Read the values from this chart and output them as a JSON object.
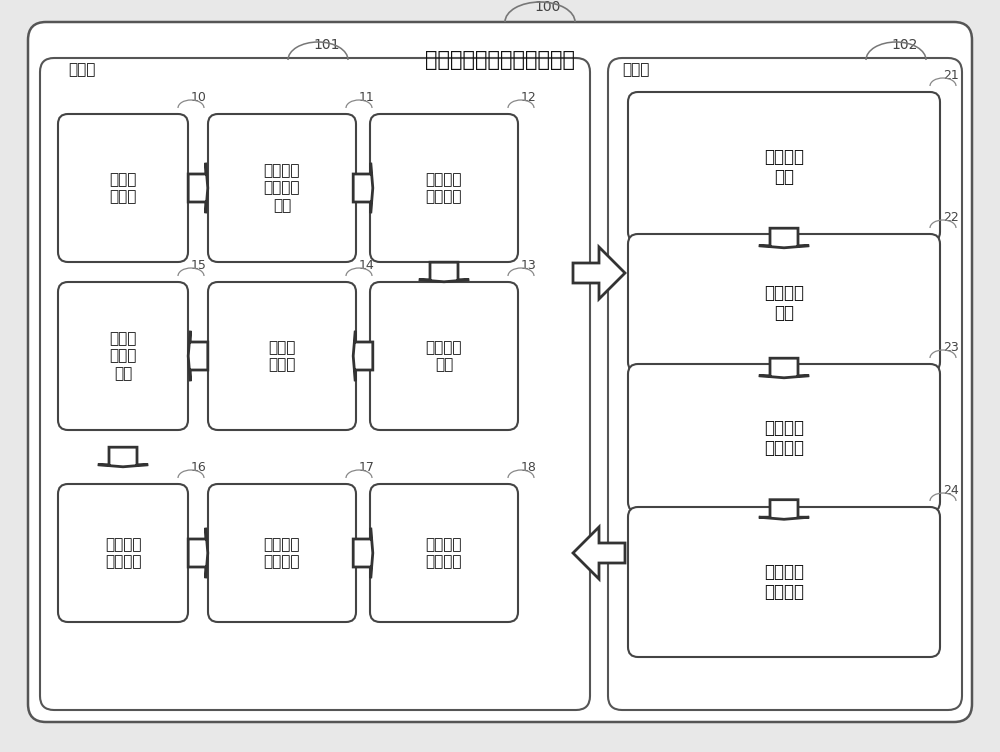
{
  "title_main": "用于辅助教学过程的教学系",
  "label_100": "100",
  "label_101": "101",
  "label_102": "102",
  "label_teacher": "教师端",
  "label_student": "学生端",
  "left_boxes": {
    "10": {
      "text": "课堂点\n评模块",
      "col": 0,
      "row": 0
    },
    "11": {
      "text": "引用电子\n备课教案\n模块",
      "col": 1,
      "row": 0
    },
    "12": {
      "text": "引用教材\n资源模块",
      "col": 2,
      "row": 0
    },
    "13": {
      "text": "小组互动\n模块",
      "col": 2,
      "row": 1
    },
    "14": {
      "text": "电子白\n板模块",
      "col": 1,
      "row": 1
    },
    "15": {
      "text": "引用随\n堂检测\n模块",
      "col": 0,
      "row": 1
    },
    "16": {
      "text": "引用课后\n作业模块",
      "col": 0,
      "row": 2
    },
    "17": {
      "text": "引用视频\n录制模块",
      "col": 1,
      "row": 2
    },
    "18": {
      "text": "引用微课\n助手模块",
      "col": 2,
      "row": 2
    }
  },
  "right_boxes": {
    "21": {
      "text": "课堂在线\n任务",
      "row": 0
    },
    "22": {
      "text": "课堂在线\n作业",
      "row": 1
    },
    "23": {
      "text": "引用视频\n录制模块",
      "row": 2
    },
    "24": {
      "text": "引用微课\n助手模块",
      "row": 3
    }
  },
  "bg_color": "#e8e8e8",
  "outer_bg": "#ffffff",
  "box_fc": "#ffffff",
  "box_ec": "#444444",
  "panel_ec": "#444444",
  "arrow_color": "#333333"
}
